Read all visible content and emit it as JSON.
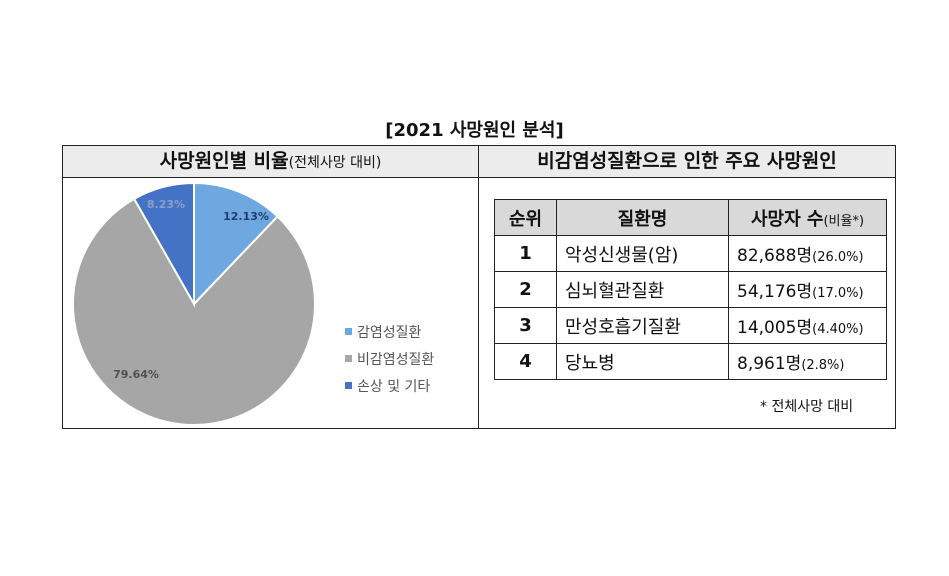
{
  "title": "[2021 사망원인 분석]",
  "left_panel": {
    "header_main": "사망원인별 비율",
    "header_sub": "(전체사망 대비)"
  },
  "right_panel": {
    "header": "비감염성질환으로 인한 주요 사망원인",
    "columns": {
      "rank": "순위",
      "disease": "질환명",
      "deaths_main": "사망자 수",
      "deaths_sub": "(비율*)"
    },
    "rows": [
      {
        "rank": "1",
        "disease": "악성신생물(암)",
        "count": "82,688명",
        "pct": "(26.0%)"
      },
      {
        "rank": "2",
        "disease": "심뇌혈관질환",
        "count": "54,176명",
        "pct": "(17.0%)"
      },
      {
        "rank": "3",
        "disease": "만성호흡기질환",
        "count": "14,005명",
        "pct": "(4.40%)"
      },
      {
        "rank": "4",
        "disease": "당뇨병",
        "count": "8,961명",
        "pct": "(2.8%)"
      }
    ],
    "footnote": "* 전체사망 대비"
  },
  "chart_data": {
    "type": "pie",
    "slices": [
      {
        "name": "감염성질환",
        "value": 12.13,
        "label": "12.13%",
        "color": "#6fa8e0",
        "label_color": "#1f3f6e"
      },
      {
        "name": "비감염성질환",
        "value": 79.64,
        "label": "79.64%",
        "color": "#a6a6a6",
        "label_color": "#505050"
      },
      {
        "name": "손상 및 기타",
        "value": 8.23,
        "label": "8.23%",
        "color": "#4472c4",
        "label_color": "#8aa0c8"
      }
    ],
    "legend": "right"
  }
}
